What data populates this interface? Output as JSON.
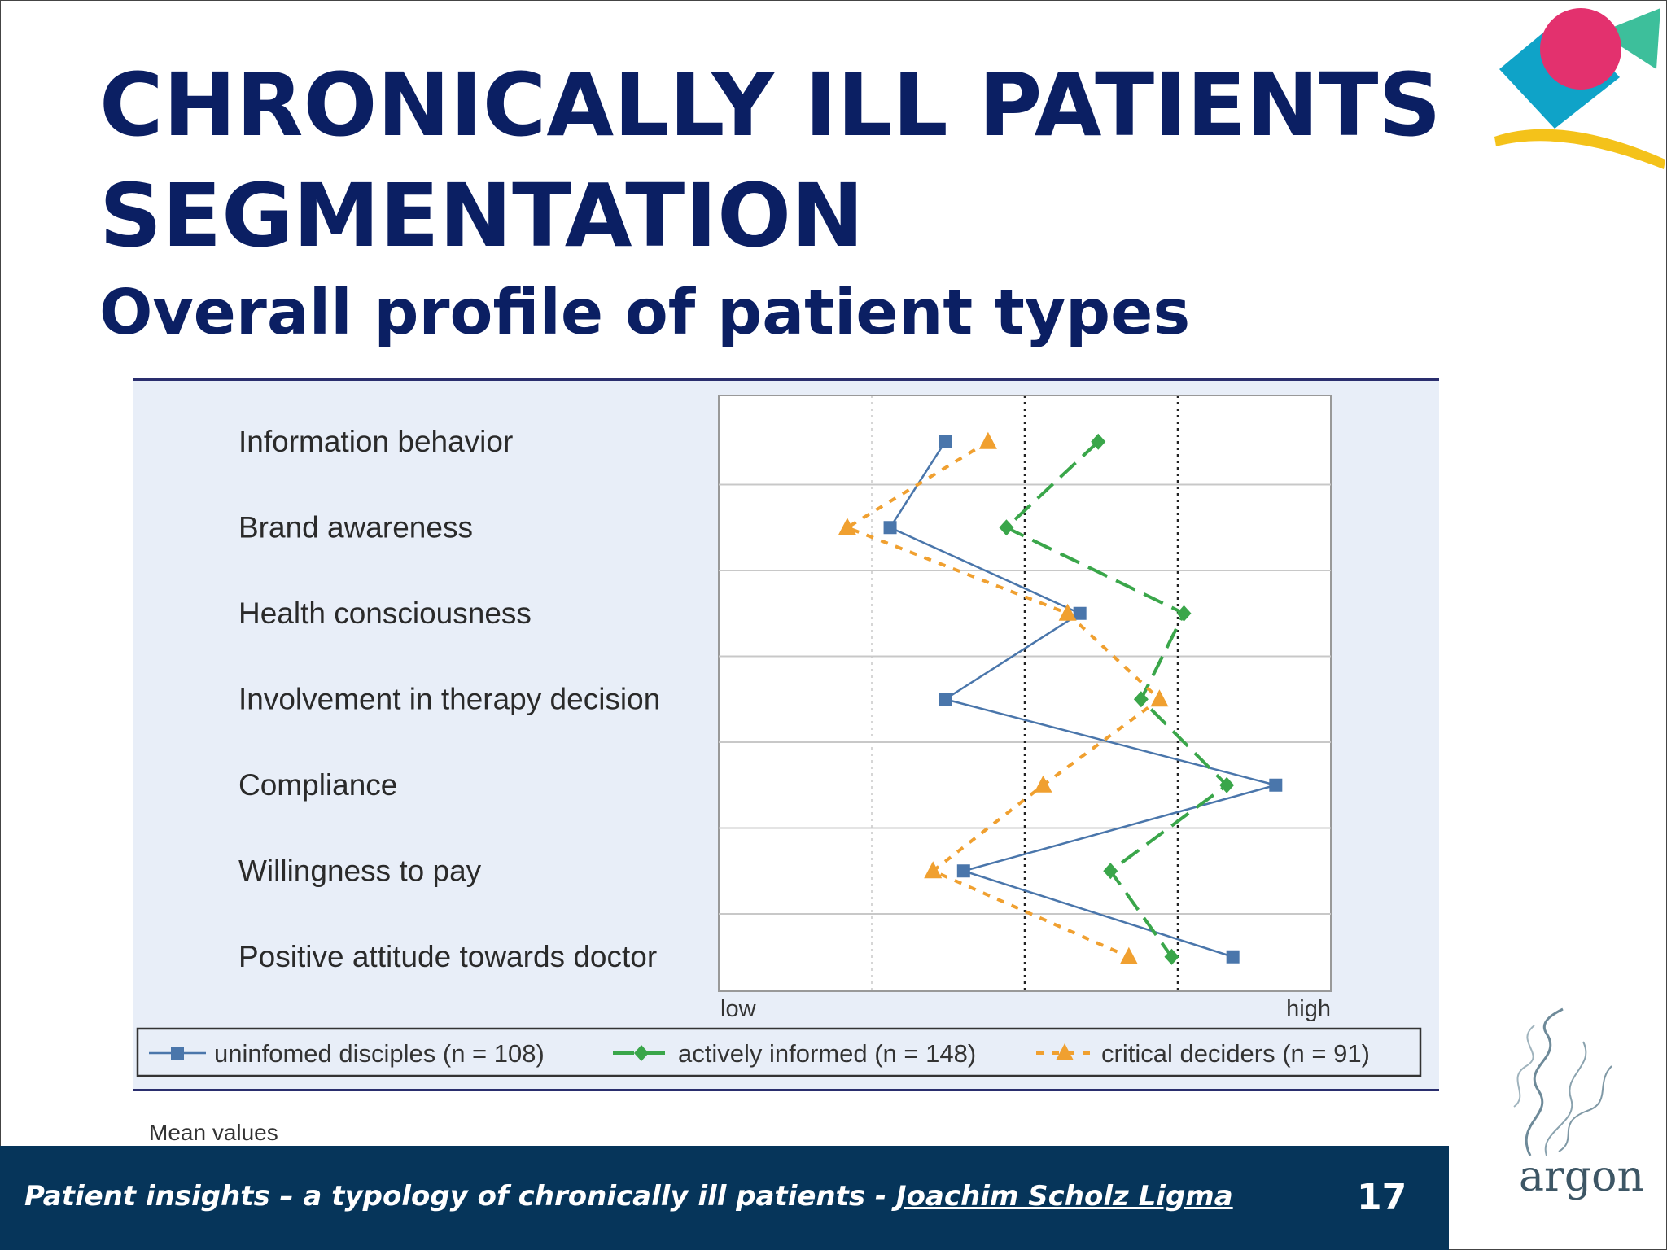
{
  "slide": {
    "title_lines": [
      "CHRONICALLY ILL PATIENTS",
      "SEGMENTATION"
    ],
    "subtitle": "Overall profile of patient types",
    "footnote": "Mean values",
    "footer": {
      "text": "Patient insights – a typology of chronically ill patients - ",
      "link": "Joachim Scholz Ligma",
      "page_number": "17"
    },
    "logo": {
      "wordmark": "argon"
    },
    "colors": {
      "title": "#0b1f63",
      "footer_bg": "#06355a",
      "chart_bg": "#e8eef8"
    }
  },
  "chart_data": {
    "type": "line",
    "orientation": "horizontal-profile",
    "categories": [
      "Information behavior",
      "Brand awareness",
      "Health consciousness",
      "Involvement in therapy decision",
      "Compliance",
      "Willingness to pay",
      "Positive attitude towards doctor"
    ],
    "x_axis": {
      "low_label": "low",
      "high_label": "high",
      "range": [
        0,
        1
      ]
    },
    "series": [
      {
        "name": "uninfomed disciples (n = 108)",
        "color": "#4a76ab",
        "marker": "square",
        "dash": "solid",
        "values": [
          0.37,
          0.28,
          0.59,
          0.37,
          0.91,
          0.4,
          0.84
        ]
      },
      {
        "name": "actively informed (n = 148)",
        "color": "#3aa64a",
        "marker": "diamond",
        "dash": "long-dash",
        "values": [
          0.62,
          0.47,
          0.76,
          0.69,
          0.83,
          0.64,
          0.74
        ]
      },
      {
        "name": "critical deciders (n = 91)",
        "color": "#f0a030",
        "marker": "triangle",
        "dash": "short-dash",
        "values": [
          0.44,
          0.21,
          0.57,
          0.72,
          0.53,
          0.35,
          0.67
        ]
      }
    ],
    "reference_lines": [
      0.5,
      0.75
    ],
    "legend_position": "bottom"
  }
}
